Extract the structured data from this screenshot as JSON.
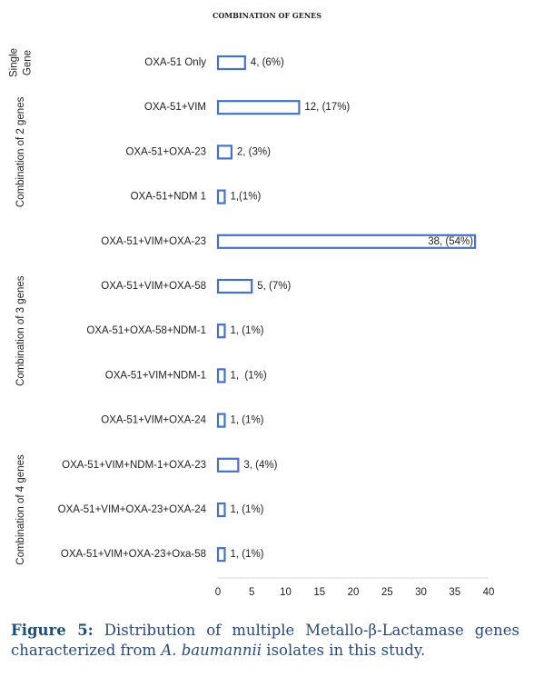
{
  "chart_data": {
    "type": "barh",
    "title": "COMBINATION OF GENES",
    "categories": [
      "OXA-51 Only",
      "OXA-51+VIM",
      "OXA-51+OXA-23",
      "OXA-51+NDM 1",
      "OXA-51+VIM+OXA-23",
      "OXA-51+VIM+OXA-58",
      "OXA-51+OXA-58+NDM-1",
      "OXA-51+VIM+NDM-1",
      "OXA-51+VIM+OXA-24",
      "OXA-51+VIM+NDM-1+OXA-23",
      "OXA-51+VIM+OXA-23+OXA-24",
      "OXA-51+VIM+OXA-23+Oxa-58"
    ],
    "values": [
      4,
      12,
      2,
      1,
      38,
      5,
      1,
      1,
      1,
      3,
      1,
      1
    ],
    "value_labels": [
      "4, (6%)",
      "12, (17%)",
      "2, (3%)",
      "1,(1%)",
      "38, (54%)",
      "5, (7%)",
      "1, (1%)",
      "1,  (1%)",
      "1, (1%)",
      "3, (4%)",
      "1, (1%)",
      "1, (1%)"
    ],
    "groups": [
      {
        "lines": [
          "Single",
          "Gene"
        ],
        "size": 1
      },
      {
        "lines": [
          "Combination of 2 genes"
        ],
        "size": 3
      },
      {
        "lines": [
          "Combination of 3 genes"
        ],
        "size": 5
      },
      {
        "lines": [
          "Combination of 4 genes"
        ],
        "size": 3
      }
    ],
    "color": "#4472c4",
    "xlim": [
      0,
      40
    ],
    "xticks": [
      0,
      5,
      10,
      15,
      20,
      25,
      30,
      35,
      40
    ],
    "grid": false
  },
  "caption": {
    "label": "Figure 5:",
    "text": "Distribution of multiple Metallo-β-Lactamase genes characterized from ",
    "italic": "A. baumannii",
    "end": " isolates in this study."
  }
}
